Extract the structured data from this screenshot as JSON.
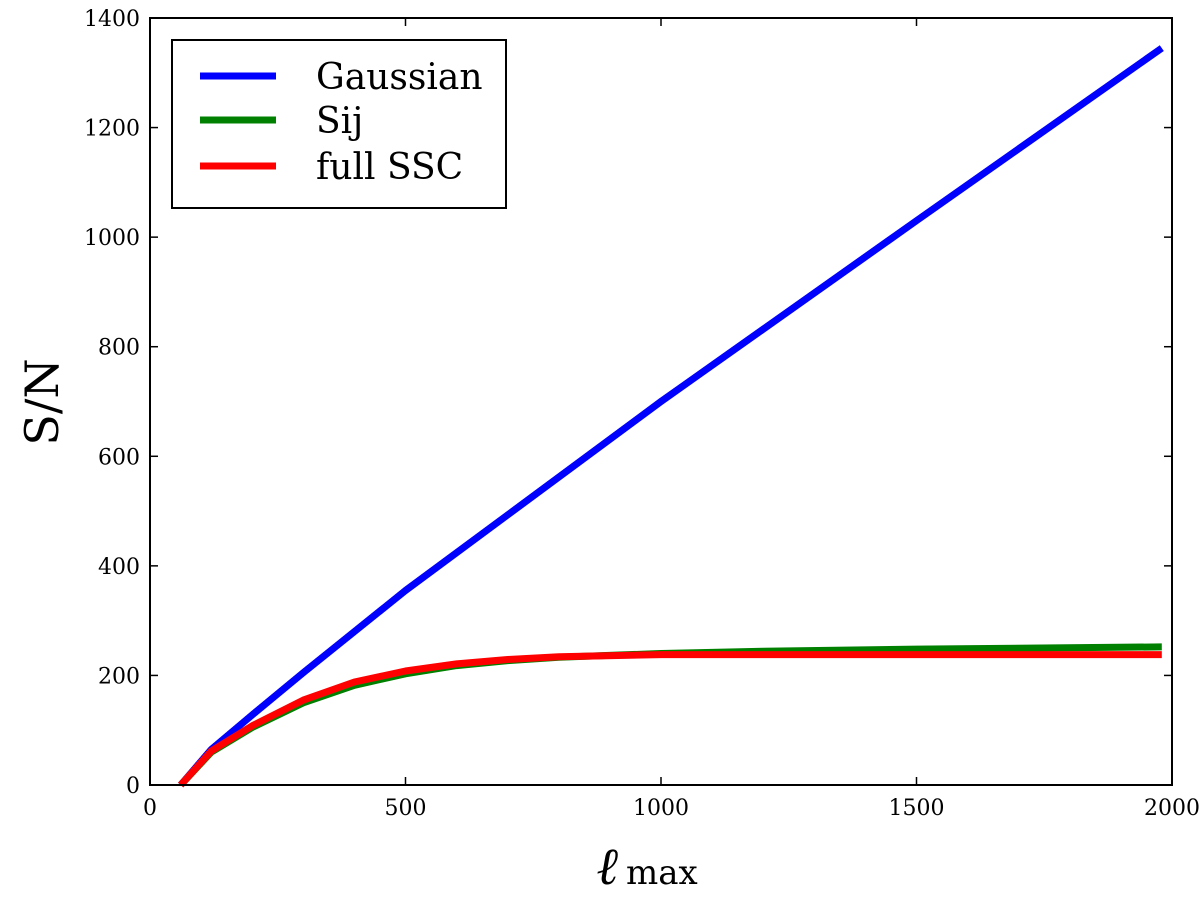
{
  "chart_data": {
    "type": "line",
    "title": "",
    "xlabel": "ℓ",
    "xlabel_subscript": "max",
    "ylabel": "S/N",
    "xlim": [
      0,
      2000
    ],
    "ylim": [
      0,
      1400
    ],
    "xticks": [
      0,
      500,
      1000,
      1500,
      2000
    ],
    "yticks": [
      0,
      200,
      400,
      600,
      800,
      1000,
      1200,
      1400
    ],
    "grid": false,
    "legend_position": "top-left",
    "series": [
      {
        "name": "Gaussian",
        "color": "#0000ff",
        "points": [
          [
            60,
            0
          ],
          [
            120,
            65
          ],
          [
            200,
            128
          ],
          [
            300,
            205
          ],
          [
            500,
            355
          ],
          [
            1000,
            700
          ],
          [
            1500,
            1030
          ],
          [
            1980,
            1345
          ]
        ]
      },
      {
        "name": "Sij",
        "color": "#008000",
        "points": [
          [
            60,
            0
          ],
          [
            120,
            60
          ],
          [
            200,
            105
          ],
          [
            300,
            150
          ],
          [
            400,
            182
          ],
          [
            500,
            203
          ],
          [
            600,
            218
          ],
          [
            700,
            227
          ],
          [
            800,
            233
          ],
          [
            1000,
            240
          ],
          [
            1200,
            244
          ],
          [
            1500,
            248
          ],
          [
            1980,
            252
          ]
        ]
      },
      {
        "name": "full SSC",
        "color": "#ff0000",
        "points": [
          [
            60,
            0
          ],
          [
            120,
            62
          ],
          [
            200,
            108
          ],
          [
            300,
            155
          ],
          [
            400,
            188
          ],
          [
            500,
            208
          ],
          [
            600,
            221
          ],
          [
            700,
            229
          ],
          [
            800,
            234
          ],
          [
            1000,
            238
          ],
          [
            1200,
            238
          ],
          [
            1500,
            238
          ],
          [
            1980,
            238
          ]
        ]
      }
    ]
  }
}
